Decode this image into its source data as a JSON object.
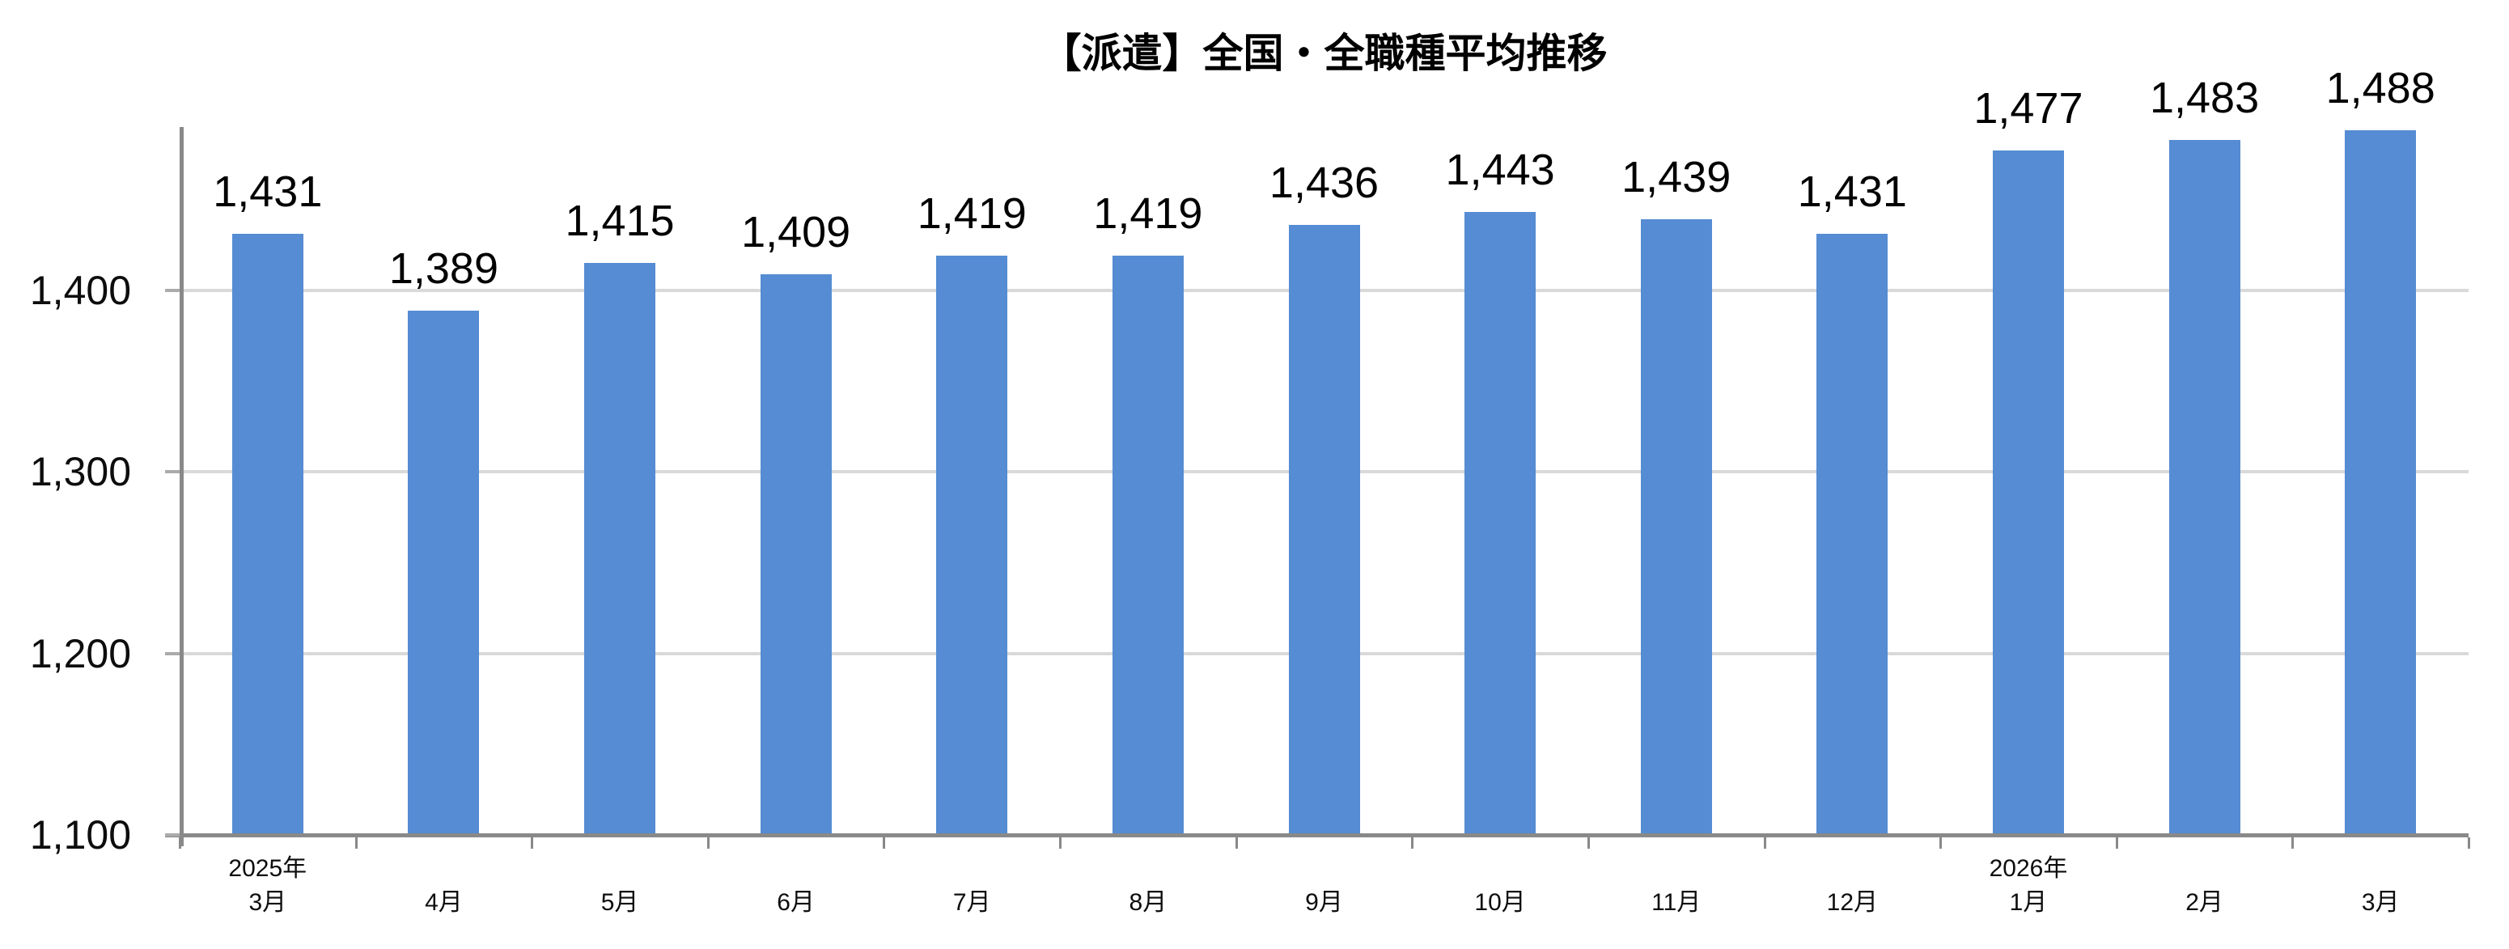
{
  "chart_data": {
    "type": "bar",
    "title": "【派遣】全国・全職種平均推移",
    "categories": [
      "3月",
      "4月",
      "5月",
      "6月",
      "7月",
      "8月",
      "9月",
      "10月",
      "11月",
      "12月",
      "1月",
      "2月",
      "3月"
    ],
    "year_annotations": [
      {
        "category_index": 0,
        "label": "2025年"
      },
      {
        "category_index": 10,
        "label": "2026年"
      }
    ],
    "values": [
      1431,
      1389,
      1415,
      1409,
      1419,
      1419,
      1436,
      1443,
      1439,
      1431,
      1477,
      1483,
      1488
    ],
    "value_labels": [
      "1,431",
      "1,389",
      "1,415",
      "1,409",
      "1,419",
      "1,419",
      "1,436",
      "1,443",
      "1,439",
      "1,431",
      "1,477",
      "1,483",
      "1,488"
    ],
    "xlabel": "",
    "ylabel": "",
    "ylim": [
      1100,
      1490
    ],
    "yticks": [
      1100,
      1200,
      1300,
      1400
    ],
    "ytick_labels": [
      "1,100",
      "1,200",
      "1,300",
      "1,400"
    ],
    "grid": true,
    "legend": "none"
  },
  "colors": {
    "bar": "#558CD3",
    "gridline": "#D9D9D9",
    "axis": "#898989",
    "y_tick": "#ABABAB",
    "text": "#000000"
  }
}
